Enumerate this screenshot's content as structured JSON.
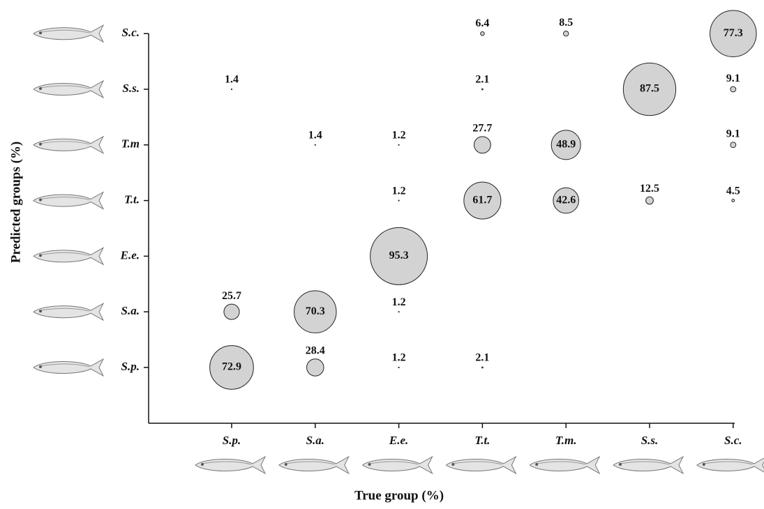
{
  "chart_data": {
    "type": "bubble",
    "x_label": "True group (%)",
    "y_label": "Predicted groups (%)",
    "x_categories": [
      "S.p.",
      "S.a.",
      "E.e.",
      "T.t.",
      "T.m.",
      "S.s.",
      "S.c."
    ],
    "y_categories": [
      "S.p.",
      "S.a.",
      "E.e.",
      "T.t.",
      "T.m",
      "S.s.",
      "S.c."
    ],
    "color": "#d3d3d3",
    "series": [
      {
        "x": [
          "S.p.",
          "S.p.",
          "S.p.",
          "S.a.",
          "S.a.",
          "S.a.",
          "E.e.",
          "E.e.",
          "E.e.",
          "E.e.",
          "E.e.",
          "T.t.",
          "T.t.",
          "T.t.",
          "T.t.",
          "T.t.",
          "T.m.",
          "T.m.",
          "T.m.",
          "S.s.",
          "S.s.",
          "S.c.",
          "S.c.",
          "S.c.",
          "S.c."
        ],
        "y": [
          "S.p.",
          "S.a.",
          "S.s.",
          "S.p.",
          "S.a.",
          "T.m",
          "S.p.",
          "S.a.",
          "E.e.",
          "T.t.",
          "T.m",
          "S.p.",
          "T.t.",
          "T.m",
          "S.s.",
          "S.c.",
          "T.t.",
          "T.m",
          "S.c.",
          "T.t.",
          "S.s.",
          "T.t.",
          "T.m",
          "S.s.",
          "S.c."
        ],
        "values": [
          72.9,
          25.7,
          1.4,
          28.4,
          70.3,
          1.4,
          1.2,
          1.2,
          95.3,
          1.2,
          1.2,
          2.1,
          61.7,
          27.7,
          2.1,
          6.4,
          42.6,
          48.9,
          8.5,
          12.5,
          87.5,
          4.5,
          9.1,
          9.1,
          77.3
        ]
      }
    ]
  }
}
